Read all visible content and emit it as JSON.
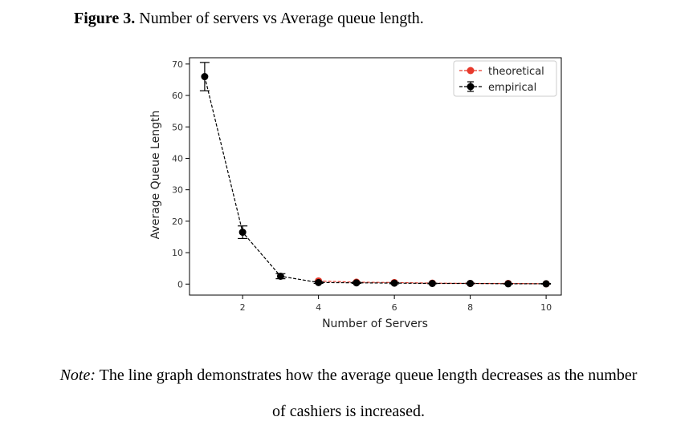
{
  "figure": {
    "label": "Figure 3.",
    "title": "Number of servers vs Average queue length."
  },
  "note": {
    "label": "Note:",
    "line1": "The line graph demonstrates how the average queue length decreases as the number",
    "line2": "of cashiers is increased."
  },
  "chart_data": {
    "type": "line",
    "title": "",
    "xlabel": "Number of Servers",
    "ylabel": "Average Queue Length",
    "xlim": [
      0.6,
      10.4
    ],
    "ylim": [
      -3.5,
      72
    ],
    "xticks": [
      2,
      4,
      6,
      8,
      10
    ],
    "yticks": [
      0,
      10,
      20,
      30,
      40,
      50,
      60,
      70
    ],
    "x": [
      1,
      2,
      3,
      4,
      5,
      6,
      7,
      8,
      9,
      10
    ],
    "legend_position": "top-right",
    "grid": false,
    "series": [
      {
        "name": "theoretical",
        "color": "#e8392b",
        "linestyle": "dashed",
        "marker": "circle",
        "values": [
          null,
          null,
          null,
          1.0,
          0.6,
          0.5,
          0.3,
          0.2,
          0.2,
          0.1
        ]
      },
      {
        "name": "empirical",
        "color": "#000000",
        "linestyle": "dashed",
        "marker": "circle",
        "values": [
          66,
          16.5,
          2.5,
          0.5,
          0.4,
          0.3,
          0.2,
          0.2,
          0.1,
          0.1
        ],
        "error": [
          4.5,
          2.0,
          0.8,
          0.3,
          0.2,
          0.2,
          0.1,
          0.1,
          0.1,
          0.1
        ]
      }
    ]
  }
}
